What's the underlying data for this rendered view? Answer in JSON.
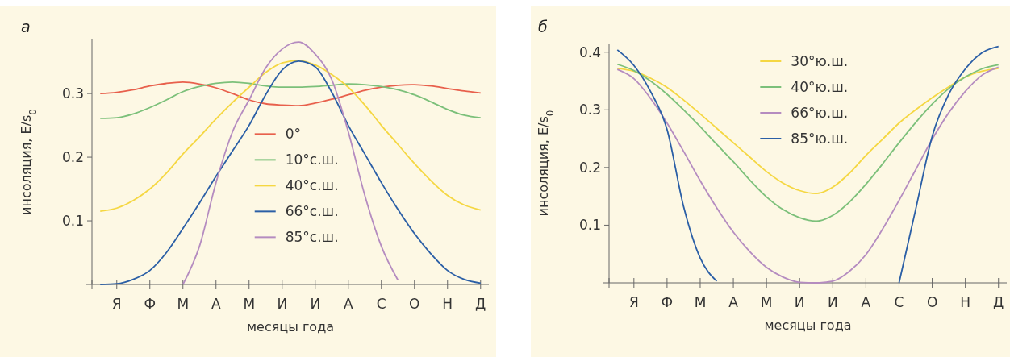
{
  "chart_data": [
    {
      "type": "line",
      "title": "а",
      "xlabel": "месяцы года",
      "ylabel": "инсоляция, E/s$_{0}$",
      "legend": "center",
      "grid": false,
      "ylim": [
        0,
        0.385
      ],
      "yticks": [
        0.1,
        0.2,
        0.3
      ],
      "categories": [
        null,
        "Я",
        null,
        "Ф",
        null,
        "М",
        null,
        "А",
        null,
        "М",
        null,
        "И",
        null,
        "И",
        null,
        "А",
        null,
        "С",
        null,
        "О",
        null,
        "Н",
        null,
        "Д"
      ],
      "series": [
        {
          "name": "0°",
          "color": "#e8604c",
          "values": [
            0.3,
            0.302,
            0.306,
            0.312,
            0.316,
            0.318,
            0.315,
            0.309,
            0.3,
            0.29,
            0.284,
            0.282,
            0.281,
            0.285,
            0.291,
            0.298,
            0.305,
            0.31,
            0.313,
            0.314,
            0.312,
            0.308,
            0.304,
            0.301
          ]
        },
        {
          "name": "10°с.ш.",
          "color": "#7cc07a",
          "values": [
            0.261,
            0.262,
            0.268,
            0.278,
            0.29,
            0.303,
            0.311,
            0.316,
            0.318,
            0.316,
            0.312,
            0.31,
            0.31,
            0.311,
            0.313,
            0.315,
            0.314,
            0.311,
            0.306,
            0.298,
            0.287,
            0.275,
            0.266,
            0.262
          ]
        },
        {
          "name": "40°с.ш.",
          "color": "#f5d742",
          "values": [
            0.115,
            0.12,
            0.132,
            0.15,
            0.175,
            0.205,
            0.232,
            0.26,
            0.286,
            0.31,
            0.333,
            0.348,
            0.352,
            0.345,
            0.33,
            0.31,
            0.282,
            0.25,
            0.22,
            0.19,
            0.163,
            0.14,
            0.125,
            0.117
          ]
        },
        {
          "name": "66°с.ш.",
          "color": "#2b5fa6",
          "values": [
            0,
            0.001,
            0.008,
            0.022,
            0.05,
            0.088,
            0.128,
            0.17,
            0.21,
            0.25,
            0.298,
            0.337,
            0.351,
            0.342,
            0.302,
            0.25,
            0.205,
            0.16,
            0.118,
            0.08,
            0.048,
            0.022,
            0.008,
            0.002
          ]
        },
        {
          "name": "85°с.ш.",
          "color": "#b58cc0",
          "values": [
            null,
            null,
            null,
            null,
            null,
            0,
            0.06,
            0.16,
            0.24,
            0.29,
            0.34,
            0.37,
            0.381,
            0.362,
            0.322,
            0.24,
            0.14,
            0.06,
            0.007,
            null,
            null,
            null,
            null,
            null
          ]
        }
      ]
    },
    {
      "type": "line",
      "title": "б",
      "xlabel": "месяцы года",
      "ylabel": "инсоляция, E/s$_{0}$",
      "legend": "top",
      "grid": false,
      "ylim": [
        0,
        0.415
      ],
      "yticks": [
        0.1,
        0.2,
        0.3,
        0.4
      ],
      "categories": [
        null,
        "Я",
        null,
        "Ф",
        null,
        "М",
        null,
        "А",
        null,
        "М",
        null,
        "И",
        null,
        "И",
        null,
        "А",
        null,
        "С",
        null,
        "О",
        null,
        "Н",
        null,
        "Д"
      ],
      "series": [
        {
          "name": "30°ю.ш.",
          "color": "#f5d742",
          "values": [
            0.372,
            0.367,
            0.355,
            0.339,
            0.317,
            0.293,
            0.268,
            0.243,
            0.218,
            0.193,
            0.173,
            0.16,
            0.155,
            0.166,
            0.19,
            0.221,
            0.249,
            0.277,
            0.3,
            0.321,
            0.34,
            0.357,
            0.367,
            0.372
          ]
        },
        {
          "name": "40°ю.ш.",
          "color": "#7cc07a",
          "values": [
            0.379,
            0.368,
            0.35,
            0.327,
            0.3,
            0.271,
            0.24,
            0.21,
            0.178,
            0.149,
            0.127,
            0.113,
            0.107,
            0.117,
            0.14,
            0.171,
            0.206,
            0.243,
            0.278,
            0.31,
            0.337,
            0.357,
            0.371,
            0.378
          ]
        },
        {
          "name": "66°ю.ш.",
          "color": "#b58cc0",
          "values": [
            0.37,
            0.354,
            0.32,
            0.277,
            0.228,
            0.177,
            0.13,
            0.088,
            0.054,
            0.027,
            0.01,
            0.001,
            0,
            0.003,
            0.02,
            0.049,
            0.093,
            0.143,
            0.196,
            0.249,
            0.295,
            0.332,
            0.36,
            0.374
          ]
        },
        {
          "name": "85°ю.ш.",
          "color": "#2b5fa6",
          "values": [
            0.404,
            0.377,
            0.332,
            0.266,
            0.132,
            0.043,
            0.003,
            null,
            null,
            null,
            null,
            null,
            null,
            null,
            null,
            null,
            null,
            0,
            0.127,
            0.254,
            0.327,
            0.371,
            0.399,
            0.41
          ]
        }
      ]
    }
  ]
}
